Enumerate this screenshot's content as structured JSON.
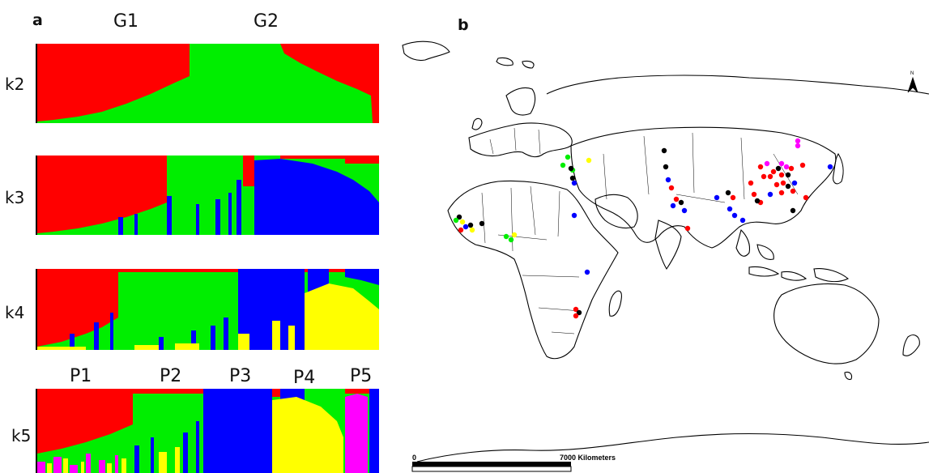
{
  "panel_a": {
    "letter": "a",
    "top_groups": [
      "G1",
      "G2"
    ],
    "bottom_groups": [
      "P1",
      "P2",
      "P3",
      "P4",
      "P5"
    ],
    "rows": [
      "k2",
      "k3",
      "k4",
      "k5"
    ]
  },
  "panel_b": {
    "letter": "b",
    "north_label": "N",
    "scale_zero": "0",
    "scale_text": "7000  Kilometers"
  },
  "colors": {
    "red": "#ff0000",
    "green": "#00ee00",
    "blue": "#0000ff",
    "yellow": "#ffff00",
    "magenta": "#ff00ff",
    "black": "#000000"
  }
}
